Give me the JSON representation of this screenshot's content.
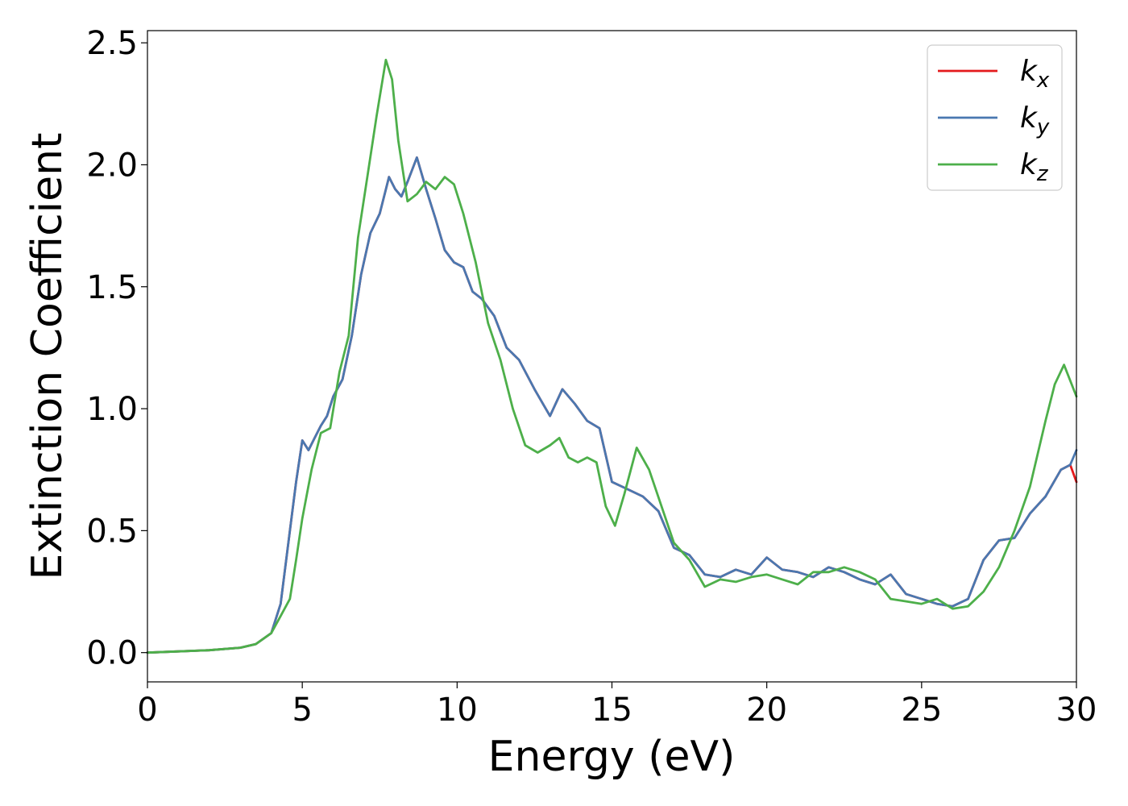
{
  "chart_data": {
    "type": "line",
    "xlabel": "Energy (eV)",
    "ylabel": "Extinction Coefficient",
    "xlim": [
      0,
      30
    ],
    "ylim": [
      -0.12,
      2.55
    ],
    "xticks": [
      0,
      5,
      10,
      15,
      20,
      25,
      30
    ],
    "yticks": [
      0.0,
      0.5,
      1.0,
      1.5,
      2.0,
      2.5
    ],
    "xtick_labels": [
      "0",
      "5",
      "10",
      "15",
      "20",
      "25",
      "30"
    ],
    "ytick_labels": [
      "0.0",
      "0.5",
      "1.0",
      "1.5",
      "2.0",
      "2.5"
    ],
    "grid": false,
    "legend_position": "top-right",
    "series": [
      {
        "name": "k",
        "subscript": "x",
        "color": "#e41a1c",
        "x": [
          0,
          1,
          2,
          3,
          3.5,
          4.0,
          4.3,
          4.6,
          4.8,
          5.0,
          5.2,
          5.4,
          5.6,
          5.8,
          6.0,
          6.3,
          6.6,
          6.9,
          7.2,
          7.5,
          7.8,
          8.0,
          8.2,
          8.4,
          8.7,
          9.0,
          9.3,
          9.6,
          9.9,
          10.2,
          10.5,
          10.8,
          11.2,
          11.6,
          12.0,
          12.5,
          13.0,
          13.4,
          13.8,
          14.2,
          14.6,
          15.0,
          15.5,
          16.0,
          16.5,
          17.0,
          17.5,
          18.0,
          18.5,
          19.0,
          19.5,
          20.0,
          20.5,
          21.0,
          21.5,
          22.0,
          22.5,
          23.0,
          23.5,
          24.0,
          24.5,
          25.0,
          25.5,
          26.0,
          26.5,
          27.0,
          27.5,
          28.0,
          28.5,
          29.0,
          29.5,
          29.8,
          30.0
        ],
        "y": [
          0.0,
          0.005,
          0.01,
          0.02,
          0.035,
          0.08,
          0.2,
          0.5,
          0.7,
          0.87,
          0.83,
          0.88,
          0.93,
          0.97,
          1.05,
          1.12,
          1.3,
          1.55,
          1.72,
          1.8,
          1.95,
          1.9,
          1.87,
          1.93,
          2.03,
          1.9,
          1.78,
          1.65,
          1.6,
          1.58,
          1.48,
          1.45,
          1.38,
          1.25,
          1.2,
          1.08,
          0.97,
          1.08,
          1.02,
          0.95,
          0.92,
          0.7,
          0.67,
          0.64,
          0.58,
          0.43,
          0.4,
          0.32,
          0.31,
          0.34,
          0.32,
          0.39,
          0.34,
          0.33,
          0.31,
          0.35,
          0.33,
          0.3,
          0.28,
          0.32,
          0.24,
          0.22,
          0.2,
          0.19,
          0.22,
          0.38,
          0.46,
          0.47,
          0.57,
          0.64,
          0.75,
          0.77,
          0.7
        ]
      },
      {
        "name": "k",
        "subscript": "y",
        "color": "#4a78b0",
        "x": [
          0,
          1,
          2,
          3,
          3.5,
          4.0,
          4.3,
          4.6,
          4.8,
          5.0,
          5.2,
          5.4,
          5.6,
          5.8,
          6.0,
          6.3,
          6.6,
          6.9,
          7.2,
          7.5,
          7.8,
          8.0,
          8.2,
          8.4,
          8.7,
          9.0,
          9.3,
          9.6,
          9.9,
          10.2,
          10.5,
          10.8,
          11.2,
          11.6,
          12.0,
          12.5,
          13.0,
          13.4,
          13.8,
          14.2,
          14.6,
          15.0,
          15.5,
          16.0,
          16.5,
          17.0,
          17.5,
          18.0,
          18.5,
          19.0,
          19.5,
          20.0,
          20.5,
          21.0,
          21.5,
          22.0,
          22.5,
          23.0,
          23.5,
          24.0,
          24.5,
          25.0,
          25.5,
          26.0,
          26.5,
          27.0,
          27.5,
          28.0,
          28.5,
          29.0,
          29.5,
          29.8,
          30.0
        ],
        "y": [
          0.0,
          0.005,
          0.01,
          0.02,
          0.035,
          0.08,
          0.2,
          0.5,
          0.7,
          0.87,
          0.83,
          0.88,
          0.93,
          0.97,
          1.05,
          1.12,
          1.3,
          1.55,
          1.72,
          1.8,
          1.95,
          1.9,
          1.87,
          1.93,
          2.03,
          1.9,
          1.78,
          1.65,
          1.6,
          1.58,
          1.48,
          1.45,
          1.38,
          1.25,
          1.2,
          1.08,
          0.97,
          1.08,
          1.02,
          0.95,
          0.92,
          0.7,
          0.67,
          0.64,
          0.58,
          0.43,
          0.4,
          0.32,
          0.31,
          0.34,
          0.32,
          0.39,
          0.34,
          0.33,
          0.31,
          0.35,
          0.33,
          0.3,
          0.28,
          0.32,
          0.24,
          0.22,
          0.2,
          0.19,
          0.22,
          0.38,
          0.46,
          0.47,
          0.57,
          0.64,
          0.75,
          0.77,
          0.83
        ]
      },
      {
        "name": "k",
        "subscript": "z",
        "color": "#4daf4a",
        "x": [
          0,
          1,
          2,
          3,
          3.5,
          4.0,
          4.3,
          4.6,
          4.8,
          5.0,
          5.3,
          5.6,
          5.9,
          6.2,
          6.5,
          6.8,
          7.1,
          7.4,
          7.7,
          7.9,
          8.1,
          8.4,
          8.7,
          9.0,
          9.3,
          9.6,
          9.9,
          10.2,
          10.6,
          11.0,
          11.4,
          11.8,
          12.2,
          12.6,
          13.0,
          13.3,
          13.6,
          13.9,
          14.2,
          14.5,
          14.8,
          15.1,
          15.4,
          15.8,
          16.2,
          16.6,
          17.0,
          17.5,
          18.0,
          18.5,
          19.0,
          19.5,
          20.0,
          20.5,
          21.0,
          21.5,
          22.0,
          22.5,
          23.0,
          23.5,
          24.0,
          24.5,
          25.0,
          25.5,
          26.0,
          26.5,
          27.0,
          27.5,
          28.0,
          28.5,
          29.0,
          29.3,
          29.6,
          30.0
        ],
        "y": [
          0.0,
          0.005,
          0.01,
          0.02,
          0.035,
          0.08,
          0.15,
          0.22,
          0.38,
          0.55,
          0.75,
          0.9,
          0.92,
          1.15,
          1.3,
          1.7,
          1.95,
          2.2,
          2.43,
          2.35,
          2.1,
          1.85,
          1.88,
          1.93,
          1.9,
          1.95,
          1.92,
          1.8,
          1.6,
          1.35,
          1.2,
          1.0,
          0.85,
          0.82,
          0.85,
          0.88,
          0.8,
          0.78,
          0.8,
          0.78,
          0.6,
          0.52,
          0.65,
          0.84,
          0.75,
          0.6,
          0.45,
          0.38,
          0.27,
          0.3,
          0.29,
          0.31,
          0.32,
          0.3,
          0.28,
          0.33,
          0.33,
          0.35,
          0.33,
          0.3,
          0.22,
          0.21,
          0.2,
          0.22,
          0.18,
          0.19,
          0.25,
          0.35,
          0.5,
          0.68,
          0.95,
          1.1,
          1.18,
          1.05
        ]
      }
    ]
  }
}
